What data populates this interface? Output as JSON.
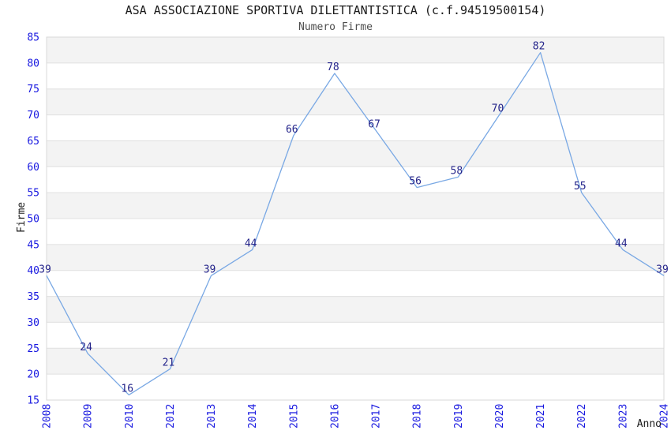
{
  "chart_data": {
    "type": "line",
    "title": "ASA ASSOCIAZIONE SPORTIVA DILETTANTISTICA (c.f.94519500154)",
    "subtitle": "Numero Firme",
    "xlabel": "Anno",
    "ylabel": "Firme",
    "categories": [
      "2008",
      "2009",
      "2010",
      "2012",
      "2013",
      "2014",
      "2015",
      "2016",
      "2017",
      "2018",
      "2019",
      "2020",
      "2021",
      "2022",
      "2023",
      "2024"
    ],
    "values": [
      39,
      24,
      16,
      21,
      39,
      44,
      66,
      78,
      67,
      56,
      58,
      70,
      82,
      55,
      44,
      39
    ],
    "ylim": [
      15,
      85
    ],
    "ytick_step": 5,
    "grid": true,
    "banded_rows": true,
    "data_labels": true,
    "legend_position": "none",
    "colors": {
      "line": "#79A8E4",
      "data_label": "#24248A",
      "axis_tick_label": "#1818E0",
      "band_fill": "#F3F3F3",
      "gridline": "#E0E0E0",
      "plot_border": "#D8D8D8",
      "title_text": "#1A1A1A",
      "subtitle_text": "#4D4D4D",
      "axis_title_text": "#1A1A1A",
      "background": "#FFFFFF"
    }
  }
}
